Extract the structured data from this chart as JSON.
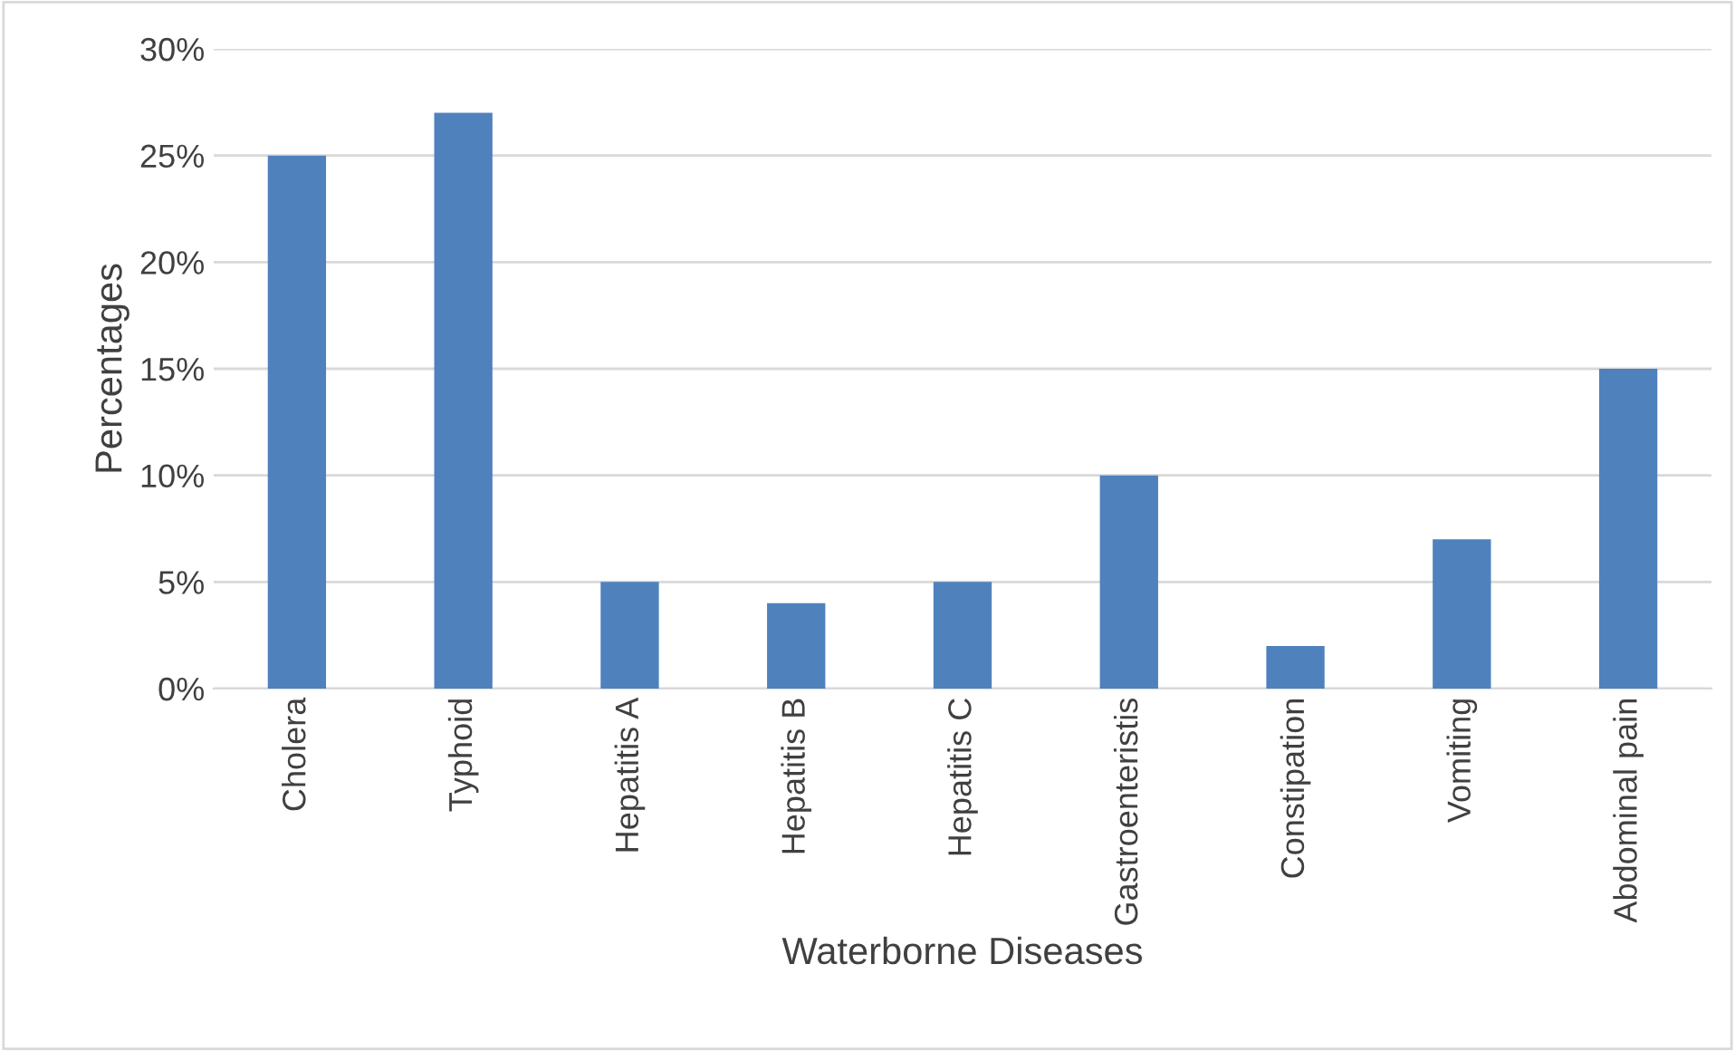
{
  "chart_data": {
    "type": "bar",
    "xlabel": "Waterborne Diseases",
    "ylabel": "Percentages",
    "categories": [
      "Cholera",
      "Typhoid",
      "Hepatitis A",
      "Hepatitis B",
      "Hepatitis C",
      "Gastroenteristis",
      "Constipation",
      "Vomiting",
      "Abdominal pain"
    ],
    "values": [
      25,
      27,
      5,
      4,
      5,
      10,
      2,
      7,
      15
    ],
    "color": "#4f81bd",
    "ylim": [
      0,
      30
    ],
    "yticks": [
      {
        "value": 0,
        "label": "0%"
      },
      {
        "value": 5,
        "label": "5%"
      },
      {
        "value": 10,
        "label": "10%"
      },
      {
        "value": 15,
        "label": "15%"
      },
      {
        "value": 20,
        "label": "20%"
      },
      {
        "value": 25,
        "label": "25%"
      },
      {
        "value": 30,
        "label": "30%"
      }
    ],
    "grid": "y",
    "legend": false
  }
}
